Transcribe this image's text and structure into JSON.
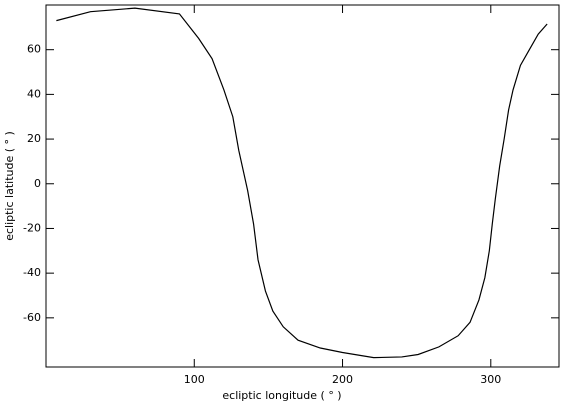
{
  "chart_data": {
    "type": "line",
    "xlabel": "ecliptic longitude ( ° )",
    "ylabel": "ecliptic latitude ( ° )",
    "xlim": [
      0,
      346
    ],
    "xticks": [
      100,
      200,
      300
    ],
    "ylim": [
      -82,
      80
    ],
    "yticks": [
      -60,
      -40,
      -20,
      0,
      20,
      40,
      60
    ],
    "series": [
      {
        "color": "#000000",
        "x": [
          7,
          30,
          60,
          90,
          103,
          112,
          120,
          126,
          130,
          133,
          136,
          140,
          143,
          148,
          153,
          160,
          170,
          185,
          200,
          221,
          240,
          251,
          265,
          278,
          286,
          292,
          296,
          299,
          301,
          303,
          306,
          309,
          312,
          315,
          320,
          326,
          332,
          338
        ],
        "values": [
          73,
          77,
          78.6,
          76,
          65,
          56,
          42,
          30,
          15,
          6,
          -3,
          -18,
          -34,
          -48,
          -57,
          -64,
          -70,
          -73.5,
          -75.5,
          -77.8,
          -77.5,
          -76.4,
          -73,
          -68,
          -62,
          -52,
          -42,
          -30,
          -18,
          -7,
          8,
          20,
          33,
          42,
          53,
          60,
          67,
          71.5
        ]
      }
    ]
  }
}
